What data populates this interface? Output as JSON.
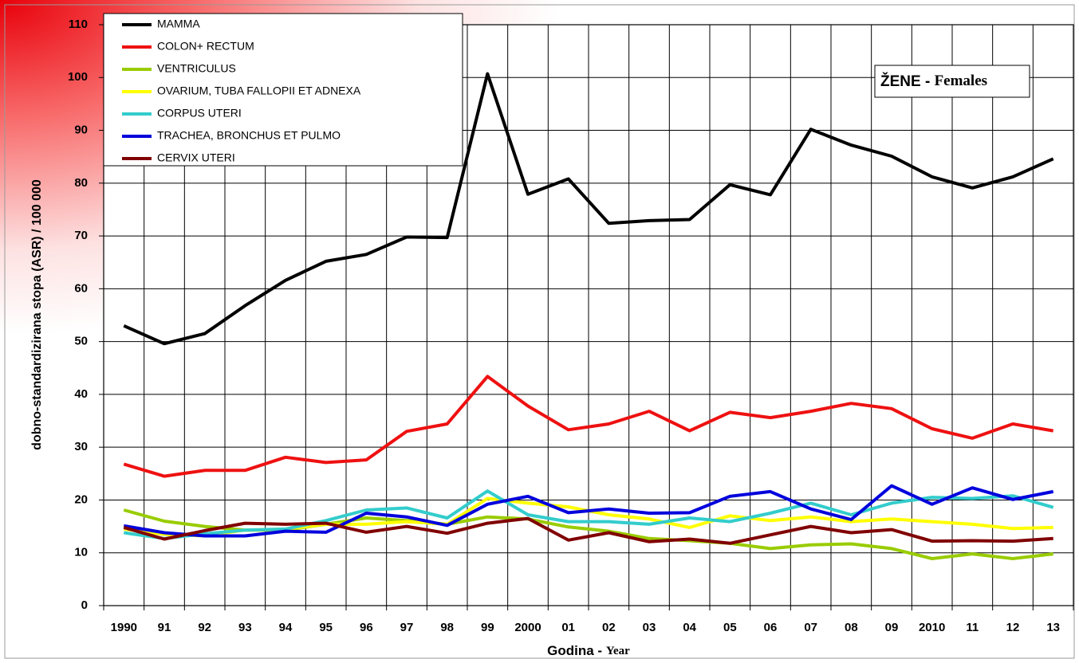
{
  "chart_data": {
    "type": "line",
    "annotation": [
      "ŽENE - ",
      "Females"
    ],
    "y_label": "dobno-standardizirana stopa (ASR) / 100 000",
    "x_label": [
      "Godina - ",
      "Year"
    ],
    "categories": [
      "1990",
      "91",
      "92",
      "93",
      "94",
      "95",
      "96",
      "97",
      "98",
      "99",
      "2000",
      "01",
      "02",
      "03",
      "04",
      "05",
      "06",
      "07",
      "08",
      "09",
      "2010",
      "11",
      "12",
      "13"
    ],
    "ylim": [
      0,
      110
    ],
    "yticks": [
      0,
      10,
      20,
      30,
      40,
      50,
      60,
      70,
      80,
      90,
      100,
      110
    ],
    "grid": true,
    "legend": "upper left",
    "series": [
      {
        "name": "MAMMA",
        "color": "#000000",
        "values": [
          53,
          49.6,
          51.5,
          56.8,
          61.6,
          65.2,
          66.5,
          69.8,
          69.7,
          100.7,
          77.9,
          80.8,
          72.4,
          72.9,
          73.1,
          79.7,
          77.8,
          90.2,
          87.2,
          85.1,
          81.2,
          79.1,
          81.2,
          84.6
        ]
      },
      {
        "name": "COLON+ RECTUM",
        "color": "#ee1111",
        "values": [
          26.8,
          24.5,
          25.6,
          25.6,
          28.1,
          27.1,
          27.6,
          33,
          34.4,
          43.4,
          37.8,
          33.3,
          34.4,
          36.8,
          33.1,
          36.6,
          35.6,
          36.8,
          38.3,
          37.3,
          33.5,
          31.7,
          34.4,
          33.1
        ]
      },
      {
        "name": "VENTRICULUS",
        "color": "#99cc00",
        "values": [
          18.1,
          16,
          15,
          14.3,
          14.3,
          15.4,
          16.6,
          16.1,
          15.4,
          16.8,
          16.4,
          14.9,
          14.1,
          12.7,
          12.3,
          11.8,
          10.8,
          11.5,
          11.7,
          10.8,
          8.9,
          9.8,
          8.9,
          9.8
        ]
      },
      {
        "name": "OVARIUM, TUBA FALLOPII ET ADNEXA",
        "color": "#ffff00",
        "values": [
          14.5,
          13.5,
          13.2,
          14.3,
          14.5,
          15.4,
          15.4,
          15.9,
          15.4,
          20.3,
          19.4,
          18.7,
          17.2,
          16.4,
          14.8,
          17,
          16.1,
          16.8,
          15.9,
          16.4,
          15.9,
          15.4,
          14.6,
          14.8
        ]
      },
      {
        "name": "CORPUS UTERI",
        "color": "#33cccc",
        "values": [
          13.8,
          12.7,
          13.6,
          14.3,
          14.5,
          16.1,
          18.1,
          18.5,
          16.6,
          21.7,
          17.2,
          15.9,
          15.9,
          15.4,
          16.6,
          15.9,
          17.5,
          19.4,
          17.2,
          19.4,
          20.5,
          20.3,
          20.8,
          18.6
        ]
      },
      {
        "name": "TRACHEA, BRONCHUS ET PULMO",
        "color": "#0000dd",
        "values": [
          15.1,
          13.8,
          13.2,
          13.2,
          14.1,
          13.9,
          17.5,
          16.8,
          15.2,
          19.2,
          20.7,
          17.6,
          18.3,
          17.5,
          17.6,
          20.7,
          21.6,
          18.3,
          16.3,
          22.7,
          19.2,
          22.3,
          20.1,
          21.6
        ]
      },
      {
        "name": "CERVIX UTERI",
        "color": "#800000",
        "values": [
          14.8,
          12.6,
          14.2,
          15.6,
          15.4,
          15.6,
          13.9,
          15,
          13.7,
          15.6,
          16.5,
          12.4,
          13.8,
          12.1,
          12.6,
          11.8,
          13.4,
          15,
          13.8,
          14.4,
          12.2,
          12.3,
          12.2,
          12.7
        ]
      }
    ]
  }
}
